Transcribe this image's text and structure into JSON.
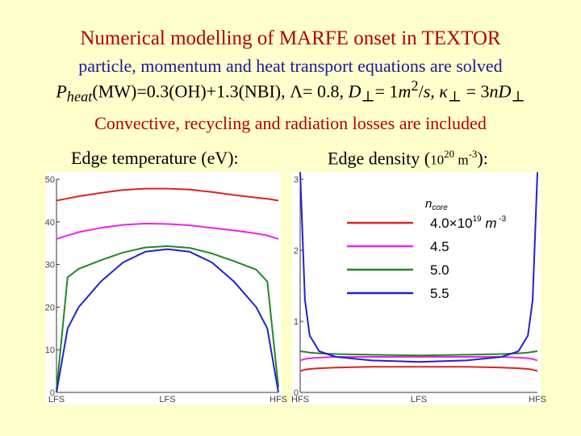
{
  "title": "Numerical modelling of MARFE onset in TEXTOR",
  "line2": "particle, momentum and heat transport equations are solved",
  "line3": {
    "p": "P",
    "heat_sub": "heat",
    "a": "(MW)=0.3(OH)+1.3(NBI), Λ= 0.8, ",
    "d1": "D",
    "perp1": "⊥",
    "b": "= 1",
    "m": "m",
    "m_exp": "2",
    "c": "/",
    "s": "s,",
    "kappa": " κ",
    "perp2": "⊥",
    "d": " = 3",
    "n": "n",
    "d2": "D",
    "perp3": "⊥"
  },
  "line4": "Convective, recycling and radiation losses are included",
  "left_title": "Edge temperature (eV):",
  "right_title": {
    "a": "Edge density (",
    "base": "10",
    "exp": "20",
    "b": " m",
    "exp2": "-3",
    "c": "):"
  },
  "legend": {
    "header_n": "n",
    "header_sub": "core",
    "unit_a": "×10",
    "unit_exp": "19",
    "unit_m": " m",
    "unit_exp2": " -3"
  },
  "colors": {
    "red": "#dd2222",
    "magenta": "#ee22ee",
    "green": "#228822",
    "blue": "#2222cc"
  },
  "chart_data": [
    {
      "type": "line",
      "title": "Edge temperature (eV):",
      "x_ticks": [
        "LFS",
        "LFS",
        "HFS"
      ],
      "y_ticks": [
        "0",
        "10",
        "20",
        "30",
        "40",
        "50"
      ],
      "ylim": [
        0,
        50
      ],
      "x": [
        0,
        0.05,
        0.1,
        0.2,
        0.3,
        0.4,
        0.5,
        0.6,
        0.7,
        0.8,
        0.9,
        0.95,
        1
      ],
      "series": [
        {
          "name": "4.0",
          "color": "#dd2222",
          "values": [
            45,
            45.5,
            46,
            46.8,
            47.5,
            47.8,
            47.8,
            47.6,
            47,
            46.3,
            45.7,
            45.4,
            45
          ]
        },
        {
          "name": "4.5",
          "color": "#ee22ee",
          "values": [
            36,
            36.8,
            37.6,
            38.6,
            39.3,
            39.6,
            39.5,
            39.2,
            38.6,
            38,
            37.3,
            36.8,
            36
          ]
        },
        {
          "name": "5.0",
          "color": "#228822",
          "values": [
            0.5,
            27,
            29,
            31,
            32.8,
            34,
            34.3,
            33.9,
            32.6,
            30.8,
            28.8,
            26,
            1.2
          ]
        },
        {
          "name": "5.5",
          "color": "#2222cc",
          "values": [
            0,
            15,
            20,
            26,
            30.5,
            33,
            33.6,
            33,
            30.5,
            26,
            20,
            15,
            0
          ]
        }
      ]
    },
    {
      "type": "line",
      "title": "Edge density (10^20 m^-3):",
      "x_ticks": [
        "HFS",
        "LFS",
        "HFS"
      ],
      "y_ticks": [
        "0",
        "1",
        "2",
        "3"
      ],
      "ylim": [
        0,
        3
      ],
      "x": [
        0,
        0.02,
        0.04,
        0.08,
        0.15,
        0.3,
        0.5,
        0.7,
        0.85,
        0.92,
        0.96,
        0.98,
        1
      ],
      "series": [
        {
          "name": "4.0",
          "color": "#dd2222",
          "values": [
            0.3,
            0.32,
            0.33,
            0.34,
            0.35,
            0.36,
            0.36,
            0.36,
            0.35,
            0.34,
            0.33,
            0.32,
            0.3
          ]
        },
        {
          "name": "4.5",
          "color": "#ee22ee",
          "values": [
            0.45,
            0.47,
            0.48,
            0.49,
            0.5,
            0.5,
            0.5,
            0.5,
            0.5,
            0.49,
            0.48,
            0.47,
            0.45
          ]
        },
        {
          "name": "5.0",
          "color": "#228822",
          "values": [
            0.58,
            0.57,
            0.56,
            0.55,
            0.54,
            0.53,
            0.52,
            0.53,
            0.54,
            0.55,
            0.56,
            0.57,
            0.58
          ]
        },
        {
          "name": "5.5",
          "color": "#2222cc",
          "values": [
            3.1,
            1.3,
            0.8,
            0.58,
            0.5,
            0.45,
            0.43,
            0.45,
            0.5,
            0.58,
            0.8,
            1.3,
            3.1
          ]
        }
      ],
      "legend": {
        "title": "n core",
        "position": "top-right",
        "entries": [
          "4.0×10^19 m^-3",
          "4.5",
          "5.0",
          "5.5"
        ]
      }
    }
  ]
}
